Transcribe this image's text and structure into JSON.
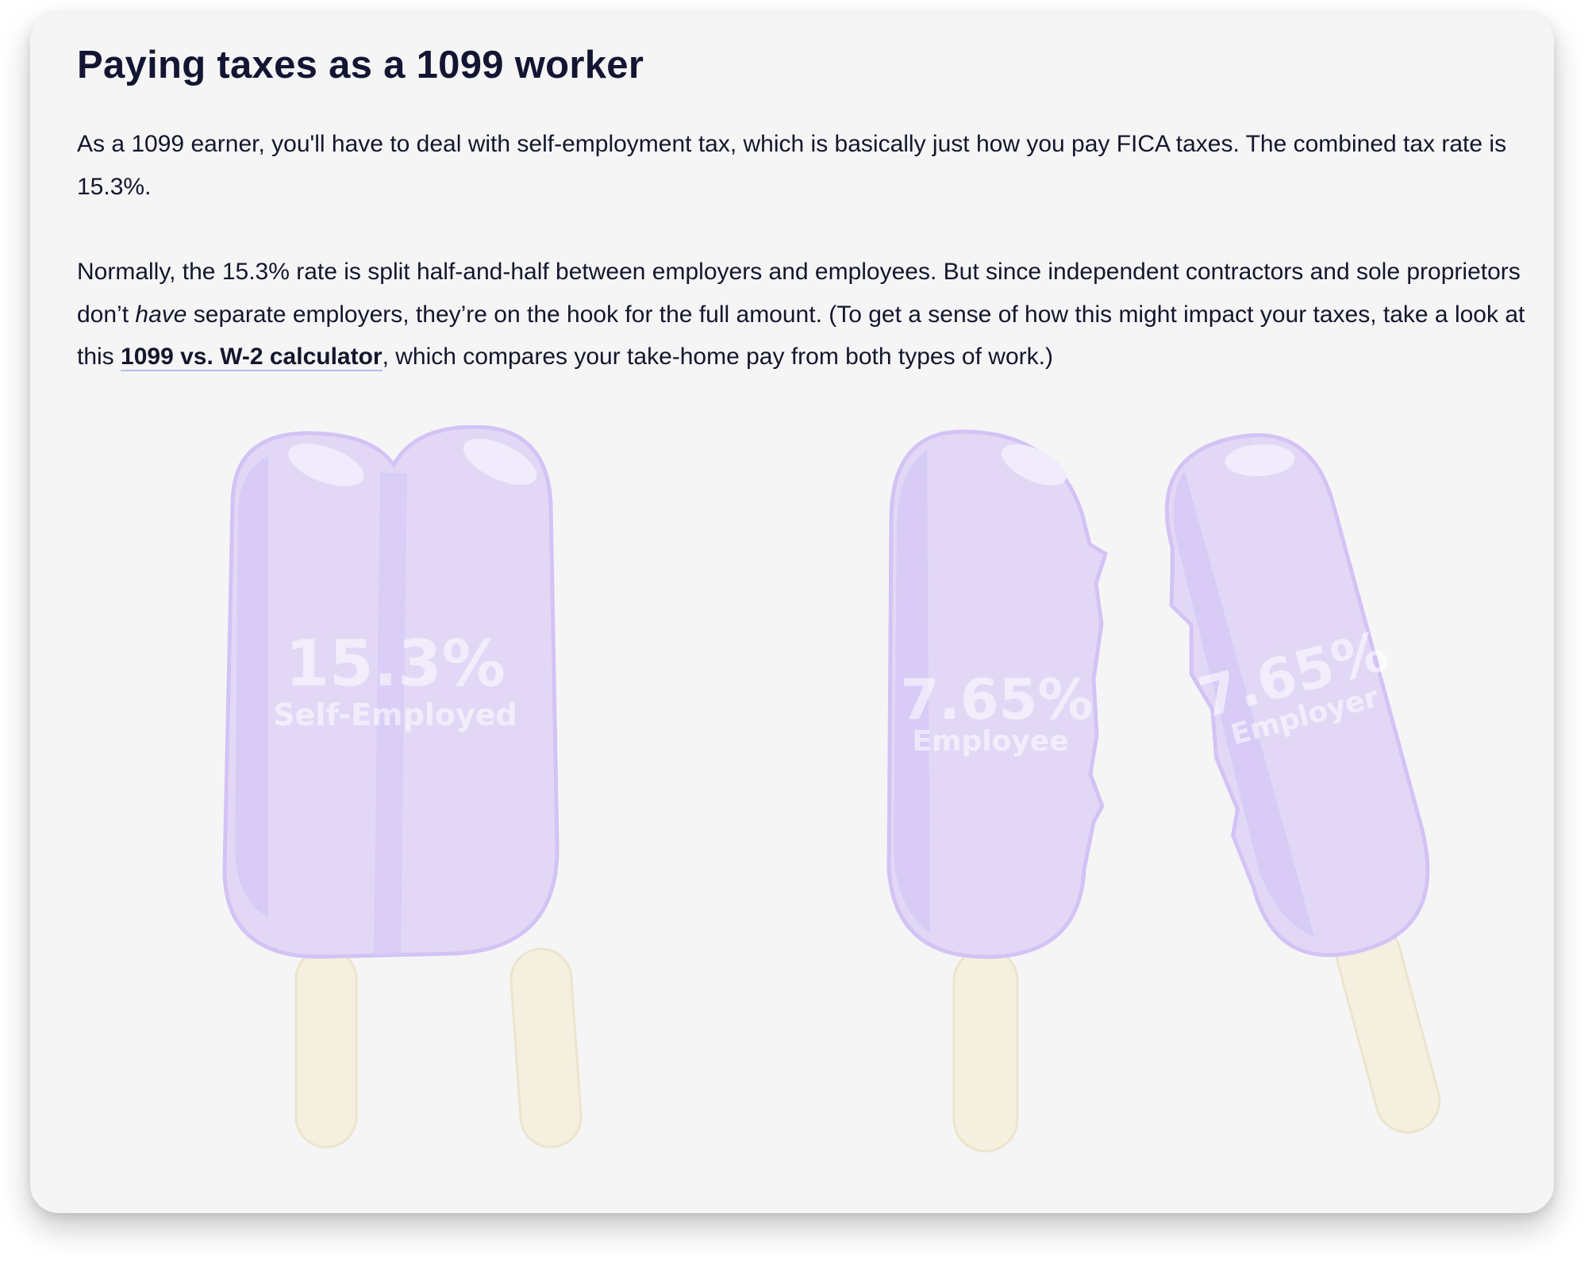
{
  "article": {
    "title": "Paying taxes as a 1099 worker",
    "paragraph1": "As a 1099 earner, you'll have to deal with self-employment tax, which is basically just how you pay FICA taxes. The combined tax rate is 15.3%.",
    "paragraph2": {
      "part1": "Normally, the 15.3% rate is split half-and-half between employers and employees. But since independent contractors and sole proprietors don’t ",
      "emphasis": "have",
      "part2": " separate employers, they’re on the hook for the full amount. (To get a sense of how this might impact your taxes, take a look at this ",
      "link_text": "1099 vs. W-2 calculator",
      "part3": ", which compares your take-home pay from both types of work.)"
    }
  },
  "illustration": {
    "self_employed": {
      "value": "15.3%",
      "label": "Self-Employed"
    },
    "employee": {
      "value": "7.65%",
      "label": "Employee"
    },
    "employer": {
      "value": "7.65%",
      "label": "Employer"
    },
    "colors": {
      "popsicle": "#e2d8f6",
      "popsicle_edge": "#d3c3f5",
      "stick": "#f4efdf"
    }
  }
}
